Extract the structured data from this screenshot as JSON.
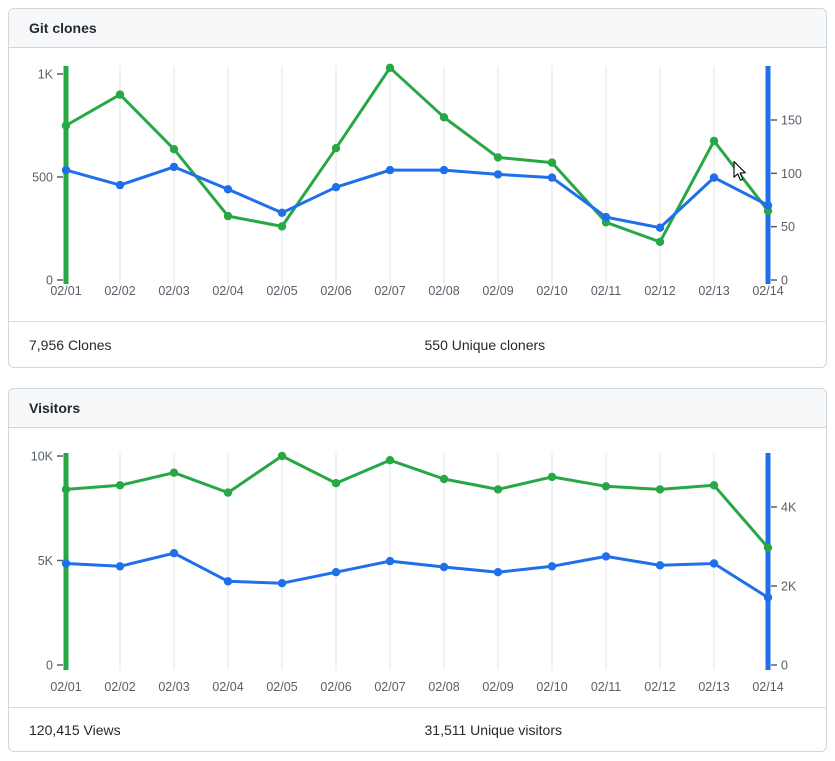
{
  "colors": {
    "clones_green": "#28a745",
    "unique_blue": "#1f6feb",
    "grid_line": "#e1e4e8",
    "tick_text": "#57606a",
    "header_bg": "#f6f8fa",
    "card_border": "#d0d7de"
  },
  "cards": [
    {
      "title": "Git clones",
      "stats": [
        {
          "value": "7,956",
          "label": "Clones"
        },
        {
          "value": "550",
          "label": "Unique cloners"
        }
      ]
    },
    {
      "title": "Visitors",
      "stats": [
        {
          "value": "120,415",
          "label": "Views"
        },
        {
          "value": "31,511",
          "label": "Unique visitors"
        }
      ]
    }
  ],
  "chart_data": [
    {
      "type": "line",
      "title": "Git clones",
      "categories": [
        "02/01",
        "02/02",
        "02/03",
        "02/04",
        "02/05",
        "02/06",
        "02/07",
        "02/08",
        "02/09",
        "02/10",
        "02/11",
        "02/12",
        "02/13",
        "02/14"
      ],
      "series": [
        {
          "name": "Clones",
          "axis": "left",
          "color": "#28a745",
          "values": [
            750,
            900,
            635,
            310,
            260,
            640,
            1030,
            790,
            595,
            570,
            280,
            185,
            675,
            336
          ]
        },
        {
          "name": "Unique cloners",
          "axis": "right",
          "color": "#1f6feb",
          "values": [
            103,
            89,
            106,
            85,
            63,
            87,
            103,
            103,
            99,
            96,
            59,
            49,
            96,
            70
          ]
        }
      ],
      "left_axis": {
        "ticks": [
          {
            "value": 0,
            "label": "0"
          },
          {
            "value": 500,
            "label": "500"
          },
          {
            "value": 1000,
            "label": "1K"
          }
        ],
        "max_tick": 1000
      },
      "right_axis": {
        "ticks": [
          {
            "value": 0,
            "label": "0"
          },
          {
            "value": 50,
            "label": "50"
          },
          {
            "value": 100,
            "label": "100"
          },
          {
            "value": 150,
            "label": "150"
          }
        ],
        "max_tick": 150
      },
      "grid": true,
      "legend": "none"
    },
    {
      "type": "line",
      "title": "Visitors",
      "categories": [
        "02/01",
        "02/02",
        "02/03",
        "02/04",
        "02/05",
        "02/06",
        "02/07",
        "02/08",
        "02/09",
        "02/10",
        "02/11",
        "02/12",
        "02/13",
        "02/14"
      ],
      "series": [
        {
          "name": "Views",
          "axis": "left",
          "color": "#28a745",
          "values": [
            8400,
            8600,
            9200,
            8250,
            10000,
            8700,
            9800,
            8900,
            8400,
            9000,
            8550,
            8400,
            8600,
            5615
          ]
        },
        {
          "name": "Unique visitors",
          "axis": "right",
          "color": "#1f6feb",
          "values": [
            2570,
            2500,
            2830,
            2120,
            2070,
            2350,
            2630,
            2480,
            2350,
            2500,
            2750,
            2525,
            2570,
            1710
          ]
        }
      ],
      "left_axis": {
        "ticks": [
          {
            "value": 0,
            "label": "0"
          },
          {
            "value": 5000,
            "label": "5K"
          },
          {
            "value": 10000,
            "label": "10K"
          }
        ],
        "max_tick": 10000
      },
      "right_axis": {
        "ticks": [
          {
            "value": 0,
            "label": "0"
          },
          {
            "value": 2000,
            "label": "2K"
          },
          {
            "value": 4000,
            "label": "4K"
          }
        ],
        "max_tick": 4000
      },
      "grid": true,
      "legend": "none"
    }
  ]
}
